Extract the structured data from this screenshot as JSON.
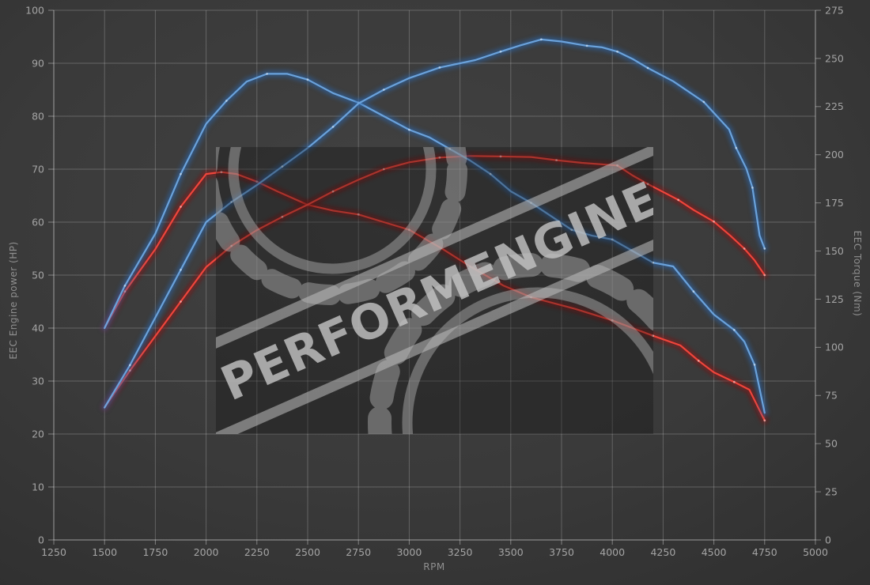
{
  "watermark": {
    "text": "PERFORMENGINE"
  },
  "chart_data": {
    "type": "line",
    "title": "",
    "xlabel": "RPM",
    "ylabel_left": "EEC Engine power (HP)",
    "ylabel_right": "EEC Torque (Nm)",
    "x_range": [
      1250,
      5000
    ],
    "x_tick_step": 250,
    "y_left_range": [
      0,
      100
    ],
    "y_left_tick_step": 10,
    "y_right_range": [
      0,
      275
    ],
    "y_right_tick_step": 25,
    "grid": true,
    "legend": "none",
    "colors": {
      "background_center": "#424242",
      "background_edge": "#2f2f2f",
      "gridline": "rgba(255,255,255,0.22)",
      "axis_line": "rgba(255,255,255,0.38)",
      "tick_text": "#a4a4a4",
      "axis_title_text": "#8f8f8f",
      "tuned_core": "#6ea6e0",
      "tuned_glow": "#2c66ad",
      "stock_core": "#f5483d",
      "stock_glow": "#8e0f0f",
      "watermark_gray": "#b5b5b5"
    },
    "series": [
      {
        "name": "stock-torque",
        "variant": "stock",
        "axis": "right",
        "unit": "Nm",
        "peak": {
          "rpm": 2075,
          "value": 191
        },
        "points": [
          [
            1500,
            110
          ],
          [
            1600,
            129
          ],
          [
            1750,
            151
          ],
          [
            1875,
            173
          ],
          [
            2000,
            190
          ],
          [
            2075,
            191
          ],
          [
            2150,
            190
          ],
          [
            2250,
            186
          ],
          [
            2350,
            181
          ],
          [
            2500,
            174
          ],
          [
            2625,
            171
          ],
          [
            2750,
            169
          ],
          [
            2875,
            165
          ],
          [
            3000,
            161
          ],
          [
            3165,
            151
          ],
          [
            3300,
            142
          ],
          [
            3465,
            132
          ],
          [
            3600,
            126
          ],
          [
            3815,
            120
          ],
          [
            4000,
            114
          ],
          [
            4100,
            110
          ],
          [
            4200,
            106
          ],
          [
            4335,
            101
          ],
          [
            4425,
            93
          ],
          [
            4500,
            87
          ],
          [
            4600,
            82
          ],
          [
            4675,
            78
          ],
          [
            4750,
            62
          ]
        ]
      },
      {
        "name": "stock-power",
        "variant": "stock",
        "axis": "left",
        "unit": "HP",
        "peak": {
          "rpm": 3300,
          "value": 72.5
        },
        "points": [
          [
            1500,
            25
          ],
          [
            1625,
            32
          ],
          [
            1750,
            38.5
          ],
          [
            1875,
            45
          ],
          [
            2000,
            51.5
          ],
          [
            2125,
            55.5
          ],
          [
            2250,
            58.5
          ],
          [
            2375,
            61
          ],
          [
            2500,
            63.3
          ],
          [
            2625,
            65.8
          ],
          [
            2750,
            68
          ],
          [
            2875,
            70
          ],
          [
            3000,
            71.3
          ],
          [
            3150,
            72.2
          ],
          [
            3300,
            72.5
          ],
          [
            3450,
            72.4
          ],
          [
            3600,
            72.3
          ],
          [
            3725,
            71.7
          ],
          [
            3850,
            71.2
          ],
          [
            4025,
            70.7
          ],
          [
            4100,
            68.8
          ],
          [
            4175,
            67.2
          ],
          [
            4250,
            65.7
          ],
          [
            4325,
            64.2
          ],
          [
            4400,
            62.3
          ],
          [
            4500,
            60.1
          ],
          [
            4580,
            57.5
          ],
          [
            4650,
            55
          ],
          [
            4700,
            52.8
          ],
          [
            4750,
            50
          ]
        ]
      },
      {
        "name": "tuned-torque",
        "variant": "tuned",
        "axis": "right",
        "unit": "Nm",
        "peak": {
          "rpm": 2300,
          "value": 242
        },
        "points": [
          [
            1500,
            110
          ],
          [
            1600,
            132
          ],
          [
            1750,
            159
          ],
          [
            1875,
            190
          ],
          [
            2000,
            216
          ],
          [
            2100,
            228
          ],
          [
            2200,
            238
          ],
          [
            2300,
            242
          ],
          [
            2400,
            242
          ],
          [
            2500,
            239
          ],
          [
            2625,
            232
          ],
          [
            2750,
            227
          ],
          [
            2875,
            220
          ],
          [
            3000,
            213
          ],
          [
            3100,
            209
          ],
          [
            3200,
            203
          ],
          [
            3300,
            197
          ],
          [
            3400,
            190
          ],
          [
            3500,
            181
          ],
          [
            3600,
            175
          ],
          [
            3700,
            168
          ],
          [
            3800,
            161
          ],
          [
            3900,
            158
          ],
          [
            4000,
            156
          ],
          [
            4100,
            150
          ],
          [
            4200,
            144
          ],
          [
            4300,
            142
          ],
          [
            4400,
            129
          ],
          [
            4500,
            117
          ],
          [
            4600,
            109
          ],
          [
            4650,
            103
          ],
          [
            4700,
            91
          ],
          [
            4750,
            66
          ]
        ]
      },
      {
        "name": "tuned-power",
        "variant": "tuned",
        "axis": "left",
        "unit": "HP",
        "peak": {
          "rpm": 3650,
          "value": 94.5
        },
        "points": [
          [
            1500,
            25
          ],
          [
            1625,
            33
          ],
          [
            1750,
            42
          ],
          [
            1875,
            51
          ],
          [
            2000,
            60
          ],
          [
            2125,
            63.8
          ],
          [
            2250,
            67
          ],
          [
            2375,
            70.5
          ],
          [
            2500,
            74
          ],
          [
            2625,
            78
          ],
          [
            2750,
            82.4
          ],
          [
            2875,
            85
          ],
          [
            3000,
            87.2
          ],
          [
            3150,
            89.2
          ],
          [
            3325,
            90.6
          ],
          [
            3450,
            92.2
          ],
          [
            3550,
            93.4
          ],
          [
            3650,
            94.5
          ],
          [
            3750,
            94.1
          ],
          [
            3875,
            93.3
          ],
          [
            3950,
            93
          ],
          [
            4025,
            92.2
          ],
          [
            4100,
            90.8
          ],
          [
            4175,
            89.1
          ],
          [
            4300,
            86.6
          ],
          [
            4450,
            82.7
          ],
          [
            4575,
            77.5
          ],
          [
            4610,
            74
          ],
          [
            4660,
            70.1
          ],
          [
            4690,
            66.5
          ],
          [
            4725,
            57.5
          ],
          [
            4750,
            55
          ]
        ]
      }
    ]
  }
}
